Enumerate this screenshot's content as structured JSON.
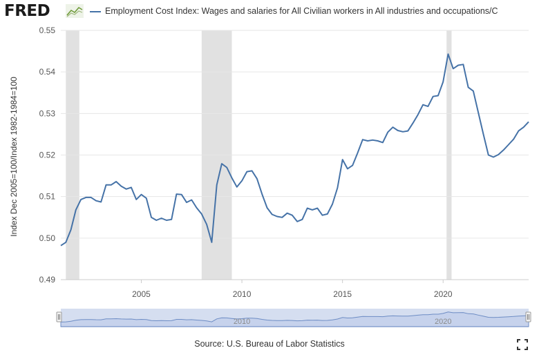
{
  "header": {
    "logo_text": "FRED",
    "logo_icon": "trend-line-icon",
    "series_title": "Employment Cost Index: Wages and salaries for All Civilian workers in All industries and occupations/C"
  },
  "footer": {
    "source": "Source: U.S. Bureau of Labor Statistics",
    "fullscreen_icon": "fullscreen-icon"
  },
  "navigator": {
    "labels": [
      "2010",
      "2020"
    ]
  },
  "colors": {
    "series": "#4572a7",
    "recession": "#e1e1e1",
    "grid": "#e6e6e6",
    "navigator_fill": "#c6d2ec",
    "navigator_line": "#6d8cc4"
  },
  "chart_data": {
    "type": "line",
    "ylabel": "Index Dec 2005=100/Index 1982-1984=100",
    "xlabel": "",
    "ylim": [
      0.49,
      0.55
    ],
    "xlim": [
      2001.0,
      2024.25
    ],
    "yticks": [
      "0.49",
      "0.50",
      "0.51",
      "0.52",
      "0.53",
      "0.54",
      "0.55"
    ],
    "xticks": [
      "2005",
      "2010",
      "2015",
      "2020"
    ],
    "grid": true,
    "recessions": [
      [
        2001.25,
        2001.92
      ],
      [
        2008.0,
        2009.5
      ],
      [
        2020.17,
        2020.42
      ]
    ],
    "series": [
      {
        "x": [
          2001.0,
          2001.25,
          2001.5,
          2001.75,
          2002.0,
          2002.25,
          2002.5,
          2002.75,
          2003.0,
          2003.25,
          2003.5,
          2003.75,
          2004.0,
          2004.25,
          2004.5,
          2004.75,
          2005.0,
          2005.25,
          2005.5,
          2005.75,
          2006.0,
          2006.25,
          2006.5,
          2006.75,
          2007.0,
          2007.25,
          2007.5,
          2007.75,
          2008.0,
          2008.25,
          2008.5,
          2008.75,
          2009.0,
          2009.25,
          2009.5,
          2009.75,
          2010.0,
          2010.25,
          2010.5,
          2010.75,
          2011.0,
          2011.25,
          2011.5,
          2011.75,
          2012.0,
          2012.25,
          2012.5,
          2012.75,
          2013.0,
          2013.25,
          2013.5,
          2013.75,
          2014.0,
          2014.25,
          2014.5,
          2014.75,
          2015.0,
          2015.25,
          2015.5,
          2015.75,
          2016.0,
          2016.25,
          2016.5,
          2016.75,
          2017.0,
          2017.25,
          2017.5,
          2017.75,
          2018.0,
          2018.25,
          2018.5,
          2018.75,
          2019.0,
          2019.25,
          2019.5,
          2019.75,
          2020.0,
          2020.25,
          2020.5,
          2020.75,
          2021.0,
          2021.25,
          2021.5,
          2021.75,
          2022.0,
          2022.25,
          2022.5,
          2022.75,
          2023.0,
          2023.25,
          2023.5,
          2023.75,
          2024.0,
          2024.25
        ],
        "values": [
          0.4982,
          0.499,
          0.502,
          0.5068,
          0.5093,
          0.5098,
          0.5098,
          0.509,
          0.5087,
          0.5128,
          0.5128,
          0.5136,
          0.5125,
          0.5118,
          0.5122,
          0.5093,
          0.5105,
          0.5096,
          0.505,
          0.5043,
          0.5048,
          0.5043,
          0.5045,
          0.5106,
          0.5105,
          0.5086,
          0.5092,
          0.5073,
          0.5058,
          0.5033,
          0.499,
          0.5128,
          0.5179,
          0.517,
          0.5145,
          0.5123,
          0.5138,
          0.516,
          0.5162,
          0.5143,
          0.5106,
          0.5073,
          0.5057,
          0.5052,
          0.505,
          0.506,
          0.5055,
          0.504,
          0.5045,
          0.5072,
          0.5068,
          0.5072,
          0.5055,
          0.5058,
          0.5082,
          0.5121,
          0.5189,
          0.5167,
          0.5175,
          0.5205,
          0.5237,
          0.5234,
          0.5236,
          0.5234,
          0.523,
          0.5255,
          0.5267,
          0.5259,
          0.5256,
          0.5258,
          0.5277,
          0.5297,
          0.5321,
          0.5317,
          0.5341,
          0.5343,
          0.5376,
          0.5443,
          0.5408,
          0.5416,
          0.5418,
          0.5363,
          0.5354,
          0.5302,
          0.525,
          0.52,
          0.5195,
          0.5201,
          0.5212,
          0.5225,
          0.5238,
          0.5258,
          0.5267,
          0.528
        ]
      }
    ]
  }
}
